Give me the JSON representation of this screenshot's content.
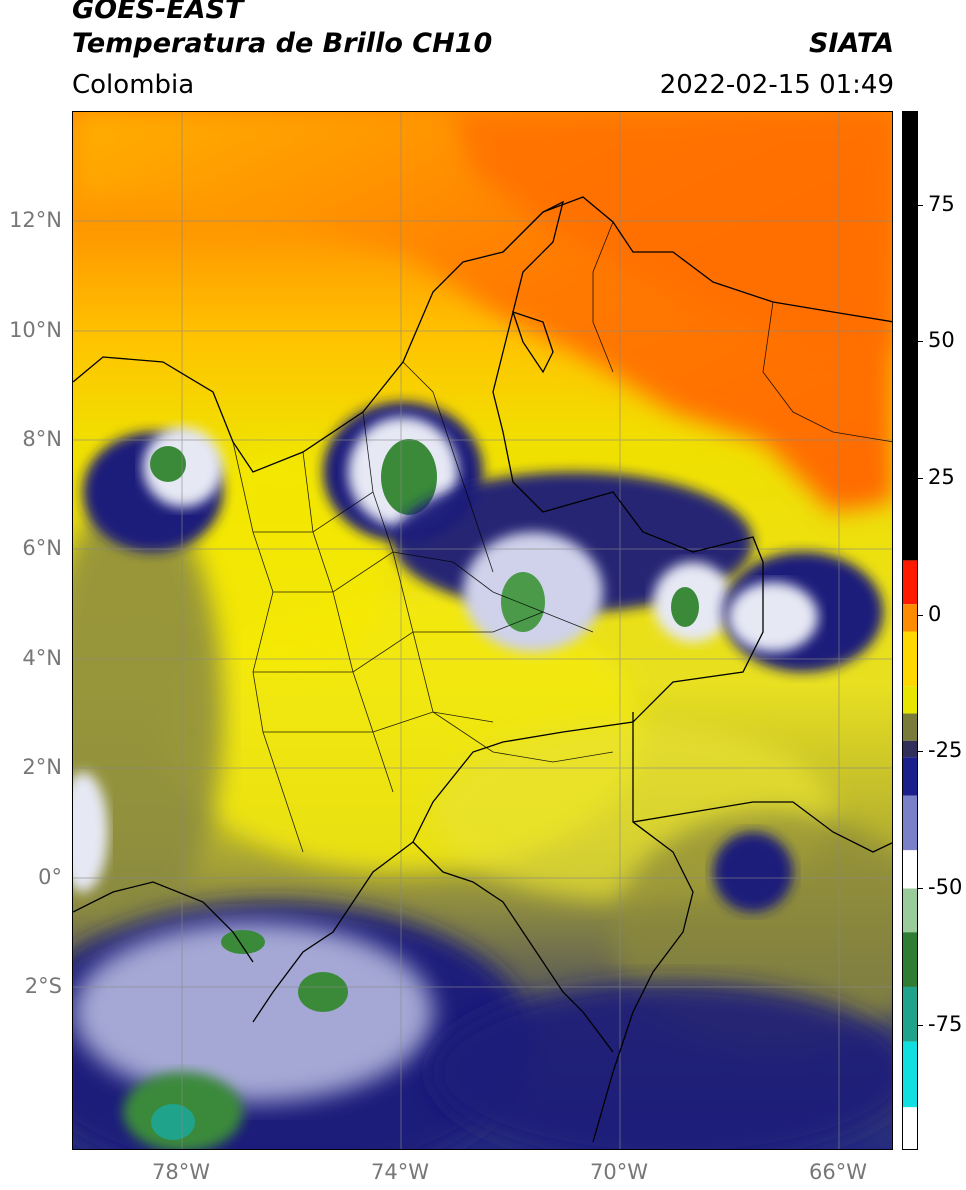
{
  "header": {
    "satellite": "GOES-EAST",
    "product": "Temperatura de Brillo CH10",
    "agency": "SIATA",
    "region": "Colombia",
    "datetime": "2022-02-15 01:49"
  },
  "map": {
    "lon_range": [
      -80,
      -64.9
    ],
    "lat_range": [
      -5,
      14
    ],
    "lat_ticks": [
      {
        "value": 12,
        "label": "12°N"
      },
      {
        "value": 10,
        "label": "10°N"
      },
      {
        "value": 8,
        "label": "8°N"
      },
      {
        "value": 6,
        "label": "6°N"
      },
      {
        "value": 4,
        "label": "4°N"
      },
      {
        "value": 2,
        "label": "2°N"
      },
      {
        "value": 0,
        "label": "0°"
      },
      {
        "value": -2,
        "label": "2°S"
      }
    ],
    "lon_ticks": [
      {
        "value": -78,
        "label": "78°W"
      },
      {
        "value": -74,
        "label": "74°W"
      },
      {
        "value": -70,
        "label": "70°W"
      },
      {
        "value": -66,
        "label": "66°W"
      }
    ],
    "colors": {
      "warm_orange": "#ff7a00",
      "yellow": "#f2e600",
      "olive": "#a8a830",
      "navy": "#1a1f7a",
      "white_cloud": "#e6e8f4",
      "green_core": "#3a8a3a",
      "border": "#000000"
    }
  },
  "colorbar": {
    "range": [
      -100,
      90
    ],
    "ticks": [
      {
        "value": 75,
        "label": "75"
      },
      {
        "value": 50,
        "label": "50"
      },
      {
        "value": 25,
        "label": "25"
      },
      {
        "value": 0,
        "label": "0"
      },
      {
        "value": -25,
        "label": "-25"
      },
      {
        "value": -50,
        "label": "-50"
      },
      {
        "value": -75,
        "label": "-75"
      }
    ],
    "segments": [
      {
        "from": 8,
        "to": 90,
        "color": "#000000"
      },
      {
        "from": 0,
        "to": 8,
        "color": "#ff1a00"
      },
      {
        "from": -5,
        "to": 0,
        "color": "#ff8c00"
      },
      {
        "from": -15,
        "to": -5,
        "color": "#ffd800"
      },
      {
        "from": -20,
        "to": -15,
        "color": "#e6e600"
      },
      {
        "from": -25,
        "to": -20,
        "color": "#7a7a3a"
      },
      {
        "from": -28,
        "to": -25,
        "color": "#30305a"
      },
      {
        "from": -35,
        "to": -28,
        "color": "#1a1f8c"
      },
      {
        "from": -45,
        "to": -35,
        "color": "#7a80c8"
      },
      {
        "from": -52,
        "to": -45,
        "color": "#ffffff"
      },
      {
        "from": -60,
        "to": -52,
        "color": "#9acb9a"
      },
      {
        "from": -70,
        "to": -60,
        "color": "#2e7d32"
      },
      {
        "from": -80,
        "to": -70,
        "color": "#1fa38a"
      },
      {
        "from": -92,
        "to": -80,
        "color": "#12e0e0"
      },
      {
        "from": -100,
        "to": -92,
        "color": "#ffffff"
      }
    ]
  }
}
